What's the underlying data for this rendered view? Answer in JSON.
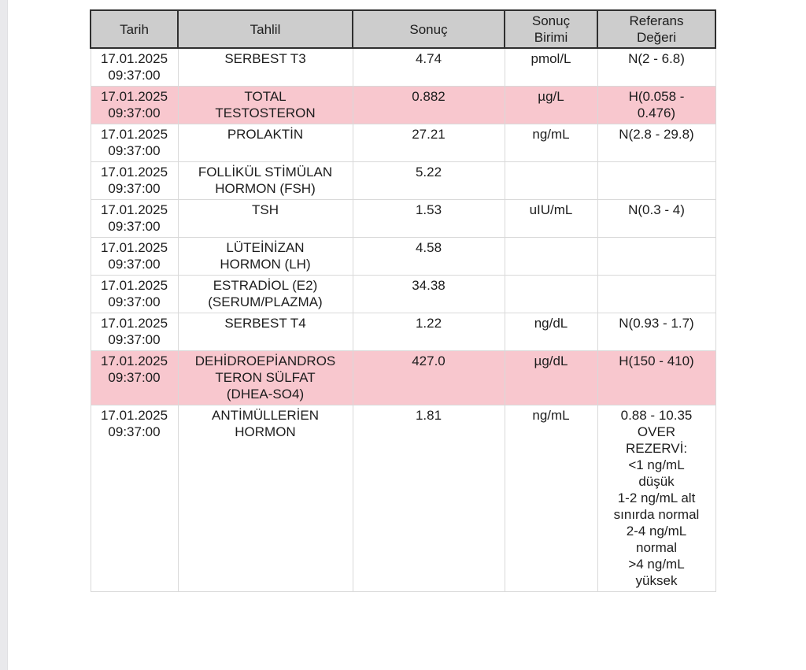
{
  "colors": {
    "header_bg": "#cdcdcd",
    "header_border": "#2f2f2f",
    "body_border": "#d9d9d9",
    "abnormal_row_bg": "#f8c7ce",
    "text_color": "#1d1d1d",
    "left_strip": "#e9e9ec"
  },
  "table": {
    "columns": [
      {
        "key": "date",
        "label": "Tarih"
      },
      {
        "key": "test",
        "label": "Tahlil"
      },
      {
        "key": "result",
        "label": "Sonuç"
      },
      {
        "key": "unit",
        "label": "Sonuç\nBirimi"
      },
      {
        "key": "reference",
        "label": "Referans\nDeğeri"
      }
    ],
    "rows": [
      {
        "date": "17.01.2025\n09:37:00",
        "test": "SERBEST T3",
        "result": "4.74",
        "unit": "pmol/L",
        "reference": "N(2 - 6.8)",
        "highlighted": false
      },
      {
        "date": "17.01.2025\n09:37:00",
        "test": "TOTAL\nTESTOSTERON",
        "result": "0.882",
        "unit": "µg/L",
        "reference": "H(0.058 -\n0.476)",
        "highlighted": true
      },
      {
        "date": "17.01.2025\n09:37:00",
        "test": "PROLAKTİN",
        "result": "27.21",
        "unit": "ng/mL",
        "reference": "N(2.8 - 29.8)",
        "highlighted": false
      },
      {
        "date": "17.01.2025\n09:37:00",
        "test": "FOLLİKÜL STİMÜLAN\nHORMON (FSH)",
        "result": "5.22",
        "unit": "",
        "reference": "",
        "highlighted": false
      },
      {
        "date": "17.01.2025\n09:37:00",
        "test": "TSH",
        "result": "1.53",
        "unit": "uIU/mL",
        "reference": "N(0.3 - 4)",
        "highlighted": false
      },
      {
        "date": "17.01.2025\n09:37:00",
        "test": "LÜTEİNİZAN\nHORMON (LH)",
        "result": "4.58",
        "unit": "",
        "reference": "",
        "highlighted": false
      },
      {
        "date": "17.01.2025\n09:37:00",
        "test": "ESTRADİOL (E2)\n(SERUM/PLAZMA)",
        "result": "34.38",
        "unit": "",
        "reference": "",
        "highlighted": false
      },
      {
        "date": "17.01.2025\n09:37:00",
        "test": "SERBEST T4",
        "result": "1.22",
        "unit": "ng/dL",
        "reference": "N(0.93 - 1.7)",
        "highlighted": false
      },
      {
        "date": "17.01.2025\n09:37:00",
        "test": "DEHİDROEPİANDROS\nTERON SÜLFAT\n(DHEA-SO4)",
        "result": "427.0",
        "unit": "µg/dL",
        "reference": "H(150 - 410)",
        "highlighted": true
      },
      {
        "date": "17.01.2025\n09:37:00",
        "test": "ANTİMÜLLERİEN\nHORMON",
        "result": "1.81",
        "unit": "ng/mL",
        "reference": "0.88 - 10.35\nOVER\nREZERVİ:\n<1 ng/mL\ndüşük\n1-2 ng/mL alt\nsınırda normal\n2-4 ng/mL\nnormal\n>4 ng/mL\nyüksek",
        "highlighted": false
      }
    ]
  }
}
